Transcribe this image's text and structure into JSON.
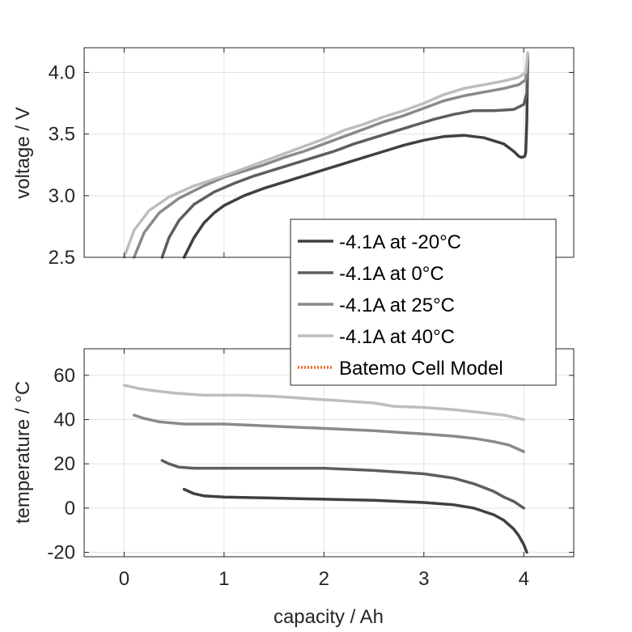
{
  "chart_data": [
    {
      "type": "line",
      "title": "",
      "xlabel": "",
      "ylabel": "voltage / V",
      "xlim": [
        -0.4,
        4.5
      ],
      "ylim": [
        2.5,
        4.2
      ],
      "xticks": [],
      "yticks": [
        "2.5",
        "3.0",
        "3.5",
        "4.0"
      ],
      "grid": true,
      "series": [
        {
          "name": "-4.1A at -20°C",
          "color": "#404040",
          "x": [
            0.6,
            0.7,
            0.8,
            0.9,
            1.0,
            1.2,
            1.4,
            1.6,
            1.8,
            2.0,
            2.2,
            2.4,
            2.6,
            2.8,
            3.0,
            3.2,
            3.4,
            3.6,
            3.8,
            3.9,
            3.95,
            3.98,
            4.01,
            4.02,
            4.03,
            4.04
          ],
          "y": [
            2.5,
            2.66,
            2.78,
            2.86,
            2.92,
            3.0,
            3.06,
            3.11,
            3.16,
            3.21,
            3.26,
            3.31,
            3.36,
            3.41,
            3.45,
            3.48,
            3.49,
            3.47,
            3.42,
            3.36,
            3.32,
            3.31,
            3.32,
            3.35,
            3.6,
            4.12
          ]
        },
        {
          "name": "-4.1A at 0°C",
          "color": "#5e5e5e",
          "x": [
            0.38,
            0.45,
            0.55,
            0.7,
            0.9,
            1.1,
            1.3,
            1.5,
            1.7,
            1.9,
            2.1,
            2.3,
            2.5,
            2.7,
            2.9,
            3.1,
            3.3,
            3.5,
            3.7,
            3.9,
            4.0,
            4.03,
            4.04
          ],
          "y": [
            2.5,
            2.66,
            2.8,
            2.93,
            3.03,
            3.1,
            3.16,
            3.21,
            3.26,
            3.31,
            3.36,
            3.42,
            3.47,
            3.52,
            3.57,
            3.62,
            3.66,
            3.69,
            3.69,
            3.7,
            3.74,
            3.83,
            4.13
          ]
        },
        {
          "name": "-4.1A at 25°C",
          "color": "#8a8a8a",
          "x": [
            0.1,
            0.2,
            0.35,
            0.55,
            0.8,
            1.0,
            1.2,
            1.4,
            1.6,
            1.8,
            2.0,
            2.2,
            2.4,
            2.6,
            2.8,
            3.0,
            3.2,
            3.4,
            3.6,
            3.8,
            3.95,
            4.02,
            4.04
          ],
          "y": [
            2.5,
            2.7,
            2.86,
            2.98,
            3.08,
            3.15,
            3.2,
            3.25,
            3.31,
            3.36,
            3.42,
            3.48,
            3.54,
            3.6,
            3.65,
            3.71,
            3.77,
            3.81,
            3.84,
            3.87,
            3.9,
            3.94,
            4.14
          ]
        },
        {
          "name": "-4.1A at 40°C",
          "color": "#bdbdbd",
          "x": [
            0.0,
            0.1,
            0.25,
            0.45,
            0.7,
            1.0,
            1.2,
            1.4,
            1.6,
            1.8,
            2.0,
            2.2,
            2.4,
            2.6,
            2.8,
            3.0,
            3.2,
            3.4,
            3.6,
            3.8,
            3.95,
            4.02,
            4.04
          ],
          "y": [
            2.5,
            2.72,
            2.88,
            2.99,
            3.08,
            3.16,
            3.22,
            3.28,
            3.34,
            3.4,
            3.46,
            3.53,
            3.58,
            3.64,
            3.69,
            3.75,
            3.82,
            3.87,
            3.9,
            3.93,
            3.96,
            4.0,
            4.16
          ]
        },
        {
          "name": "Batemo Cell Model",
          "color": "#e8661c",
          "dashed": true,
          "x": [],
          "y": []
        }
      ],
      "legend": "overlapping-bottom-right"
    },
    {
      "type": "line",
      "title": "",
      "xlabel": "capacity / Ah",
      "ylabel": "temperature / °C",
      "xlim": [
        -0.4,
        4.5
      ],
      "ylim": [
        -22,
        72
      ],
      "xticks": [
        "0",
        "1",
        "2",
        "3",
        "4"
      ],
      "yticks": [
        "-20",
        "0",
        "20",
        "40",
        "60"
      ],
      "grid": true,
      "series": [
        {
          "name": "-4.1A at -20°C",
          "color": "#404040",
          "x": [
            0.6,
            0.7,
            0.8,
            1.0,
            1.5,
            2.0,
            2.5,
            3.0,
            3.3,
            3.5,
            3.7,
            3.8,
            3.9,
            3.95,
            4.0,
            4.03
          ],
          "y": [
            8.5,
            6.5,
            5.5,
            5.0,
            4.5,
            4.0,
            3.5,
            2.5,
            1.5,
            0.0,
            -3.0,
            -5.5,
            -9.5,
            -12.5,
            -16.5,
            -20.0
          ]
        },
        {
          "name": "-4.1A at 0°C",
          "color": "#5e5e5e",
          "x": [
            0.38,
            0.45,
            0.55,
            0.7,
            1.0,
            1.5,
            2.0,
            2.5,
            3.0,
            3.3,
            3.5,
            3.7,
            3.8,
            3.9,
            4.0
          ],
          "y": [
            21.5,
            20.0,
            18.5,
            18.0,
            18.0,
            18.0,
            18.0,
            17.0,
            15.5,
            13.5,
            11.0,
            7.5,
            5.0,
            3.0,
            0.0
          ]
        },
        {
          "name": "-4.1A at 25°C",
          "color": "#8a8a8a",
          "x": [
            0.1,
            0.2,
            0.35,
            0.6,
            1.0,
            1.5,
            2.0,
            2.5,
            3.0,
            3.3,
            3.5,
            3.7,
            3.85,
            4.0
          ],
          "y": [
            42.0,
            40.5,
            39.0,
            38.0,
            38.0,
            37.0,
            36.0,
            35.0,
            33.5,
            32.5,
            31.5,
            30.0,
            28.5,
            25.5
          ]
        },
        {
          "name": "-4.1A at 40°C",
          "color": "#bdbdbd",
          "x": [
            0.0,
            0.15,
            0.3,
            0.5,
            0.8,
            1.2,
            1.5,
            2.0,
            2.5,
            2.7,
            3.0,
            3.3,
            3.6,
            3.8,
            4.0
          ],
          "y": [
            55.5,
            54.0,
            53.0,
            52.0,
            51.0,
            51.0,
            50.5,
            49.0,
            47.5,
            46.0,
            45.5,
            44.5,
            43.0,
            42.0,
            40.0
          ]
        }
      ],
      "legend": ""
    }
  ]
}
